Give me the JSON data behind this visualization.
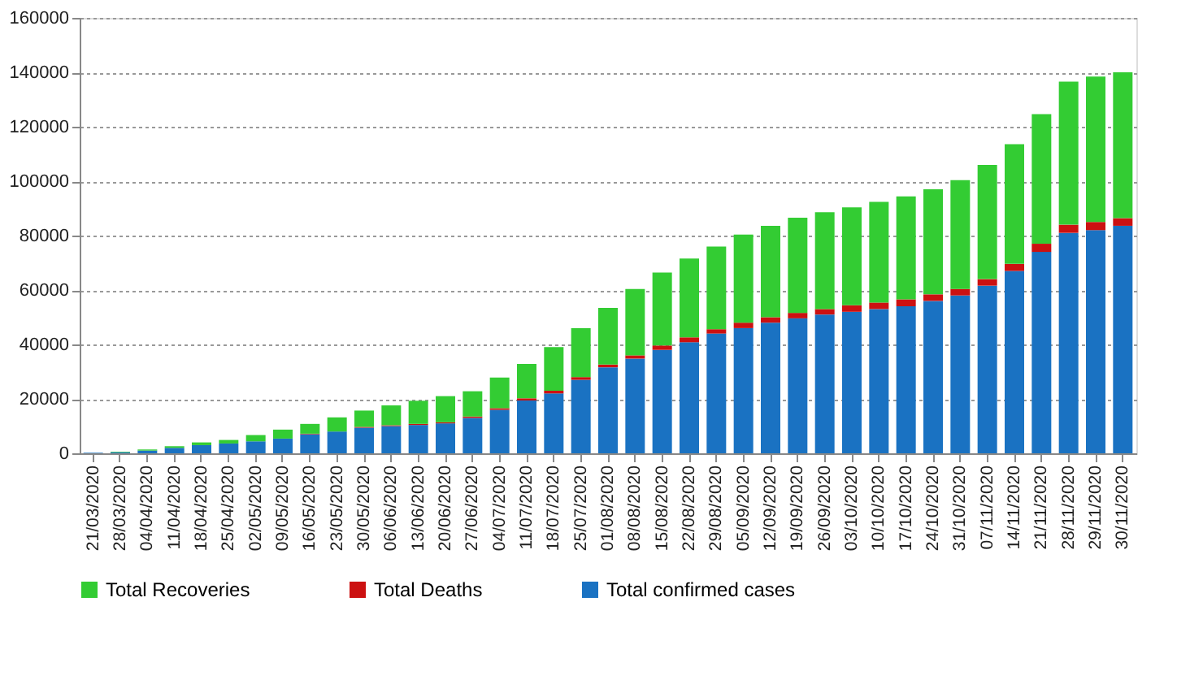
{
  "chart_data": {
    "type": "bar",
    "stacked": true,
    "categories": [
      "21/03/2020",
      "28/03/2020",
      "04/04/2020",
      "11/04/2020",
      "18/04/2020",
      "25/04/2020",
      "02/05/2020",
      "09/05/2020",
      "16/05/2020",
      "23/05/2020",
      "30/05/2020",
      "06/06/2020",
      "13/06/2020",
      "20/06/2020",
      "27/06/2020",
      "04/07/2020",
      "11/07/2020",
      "18/07/2020",
      "25/07/2020",
      "01/08/2020",
      "08/08/2020",
      "15/08/2020",
      "22/08/2020",
      "29/08/2020",
      "05/09/2020",
      "12/09/2020",
      "19/09/2020",
      "26/09/2020",
      "03/10/2020",
      "10/10/2020",
      "17/10/2020",
      "24/10/2020",
      "31/10/2020",
      "07/11/2020",
      "14/11/2020",
      "21/11/2020",
      "28/11/2020",
      "29/11/2020",
      "30/11/2020"
    ],
    "series": [
      {
        "name": "Total confirmed cases",
        "color": "#1a72c2",
        "values": [
          200,
          400,
          1000,
          2000,
          3000,
          3600,
          4400,
          5400,
          7000,
          8000,
          9400,
          10000,
          10400,
          11000,
          13000,
          16000,
          19400,
          22000,
          27000,
          31600,
          34800,
          38000,
          40800,
          44000,
          46000,
          48000,
          49600,
          51000,
          52000,
          53000,
          54000,
          56000,
          58000,
          61600,
          67000,
          74000,
          81000,
          82000,
          83600
        ]
      },
      {
        "name": "Total Deaths",
        "color": "#cc1111",
        "values": [
          0,
          0,
          0,
          0,
          0,
          null,
          null,
          null,
          200,
          null,
          300,
          300,
          400,
          400,
          500,
          600,
          800,
          1000,
          1000,
          1000,
          1200,
          1600,
          1800,
          1600,
          2000,
          2000,
          2000,
          2000,
          2400,
          2400,
          2600,
          2400,
          2400,
          2400,
          2600,
          3000,
          3000,
          3000,
          2800
        ]
      },
      {
        "name": "Total Recoveries",
        "color": "#33cc33",
        "values": [
          0,
          200,
          400,
          600,
          1000,
          1300,
          2300,
          3300,
          3600,
          5200,
          6000,
          7300,
          8500,
          9600,
          9300,
          11200,
          12600,
          16000,
          18000,
          20800,
          24400,
          26800,
          29000,
          30400,
          32400,
          33600,
          35000,
          35600,
          36000,
          37000,
          37800,
          38600,
          40000,
          42000,
          44000,
          47600,
          52600,
          53400,
          53600
        ]
      }
    ],
    "ylim": [
      0,
      160000
    ],
    "yticks": [
      0,
      20000,
      40000,
      60000,
      80000,
      100000,
      120000,
      140000,
      160000
    ],
    "grid": "y",
    "legend": "bottom"
  }
}
